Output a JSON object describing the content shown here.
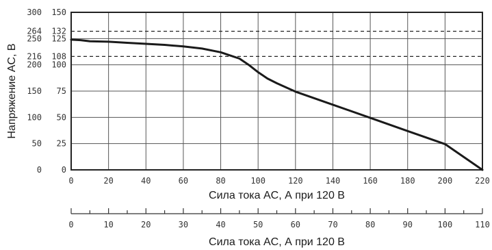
{
  "chart_data": {
    "type": "line",
    "title": "",
    "xlabel": "Сила тока AC, А при 120 В",
    "ylabel": "Напряжение AC, В",
    "xlim": [
      0,
      220
    ],
    "ylim": [
      0,
      300
    ],
    "grid": true,
    "x_ticks": [
      "0",
      "20",
      "40",
      "60",
      "80",
      "100",
      "120",
      "140",
      "160",
      "180",
      "200",
      "220"
    ],
    "y_ticks_outer": [
      "0",
      "50",
      "100",
      "150",
      "200",
      "216",
      "250",
      "264",
      "300"
    ],
    "y_ticks_inner": [
      "0",
      "25",
      "50",
      "75",
      "100",
      "108",
      "125",
      "132",
      "150"
    ],
    "reference_lines": [
      {
        "y": 264,
        "style": "dashed"
      },
      {
        "y": 216,
        "style": "dashed"
      }
    ],
    "series": [
      {
        "x": [
          0,
          5,
          10,
          20,
          30,
          40,
          50,
          60,
          70,
          80,
          85,
          90,
          95,
          100,
          105,
          110,
          120,
          140,
          160,
          180,
          200,
          220
        ],
        "y": [
          248,
          247,
          245,
          244,
          242,
          240,
          238,
          235,
          231,
          224,
          218,
          212,
          200,
          186,
          174,
          165,
          149,
          124,
          99,
          74,
          49,
          0
        ]
      }
    ],
    "secondary_axis": {
      "xlabel": "Сила тока AC, А при 120 В",
      "ticks": [
        "0",
        "10",
        "20",
        "30",
        "40",
        "50",
        "60",
        "70",
        "80",
        "90",
        "100",
        "110"
      ]
    }
  }
}
